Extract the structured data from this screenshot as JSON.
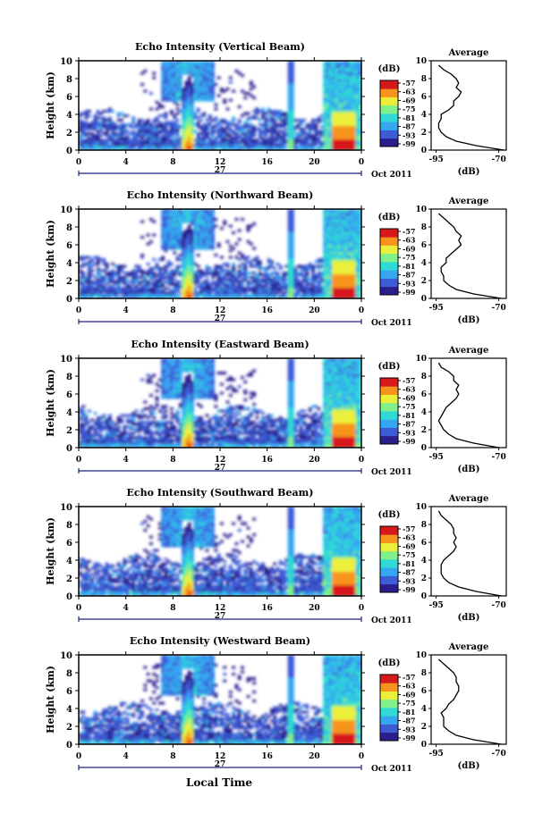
{
  "figure": {
    "xlabel": "Local Time",
    "date_label": "Oct 2011",
    "day_label": "27",
    "colorbar_unit": "(dB)",
    "avg_title": "Average",
    "avg_xlabel": "(dB)"
  },
  "chart_data": [
    {
      "type": "heatmap",
      "title": "Echo Intensity (Vertical Beam)",
      "ylabel": "Height (km)",
      "xlim": [
        0,
        24
      ],
      "x_ticks": [
        "0",
        "4",
        "8",
        "12",
        "16",
        "20",
        "0"
      ],
      "ylim": [
        0,
        10
      ],
      "y_ticks": [
        "0",
        "2",
        "4",
        "6",
        "8",
        "10"
      ],
      "colorbar": {
        "label": "(dB)",
        "range": [
          -99,
          -57
        ],
        "ticks": [
          "-57",
          "-63",
          "-69",
          "-75",
          "-81",
          "-87",
          "-93",
          "-99"
        ]
      },
      "average_profile": {
        "title": "Average",
        "xlabel": "(dB)",
        "x_ticks": [
          "-95",
          "-70"
        ],
        "xlim": [
          -97,
          -67
        ],
        "ylim": [
          0,
          10
        ],
        "height_km": [
          0,
          0.5,
          1,
          1.5,
          2,
          2.5,
          3,
          3.5,
          4,
          4.5,
          5,
          5.5,
          6,
          6.5,
          7,
          7.5,
          8,
          8.5,
          9,
          9.5
        ],
        "db": [
          -68,
          -79,
          -87,
          -91,
          -93,
          -94,
          -94,
          -93,
          -93,
          -90,
          -88,
          -88,
          -86,
          -85,
          -87,
          -86,
          -87,
          -89,
          -92,
          -94
        ]
      }
    },
    {
      "type": "heatmap",
      "title": "Echo Intensity (Northward Beam)",
      "ylabel": "Height (km)",
      "xlim": [
        0,
        24
      ],
      "x_ticks": [
        "0",
        "4",
        "8",
        "12",
        "16",
        "20",
        "0"
      ],
      "ylim": [
        0,
        10
      ],
      "y_ticks": [
        "0",
        "2",
        "4",
        "6",
        "8",
        "10"
      ],
      "colorbar": {
        "label": "(dB)",
        "range": [
          -99,
          -57
        ],
        "ticks": [
          "-57",
          "-63",
          "-69",
          "-75",
          "-81",
          "-87",
          "-93",
          "-99"
        ]
      },
      "average_profile": {
        "title": "Average",
        "xlabel": "(dB)",
        "x_ticks": [
          "-95",
          "-70"
        ],
        "xlim": [
          -97,
          -67
        ],
        "ylim": [
          0,
          10
        ],
        "height_km": [
          0,
          0.5,
          1,
          1.5,
          2,
          2.5,
          3,
          3.5,
          4,
          4.5,
          5,
          5.5,
          6,
          6.5,
          7,
          7.5,
          8,
          8.5,
          9,
          9.5
        ],
        "db": [
          -69,
          -80,
          -87,
          -90,
          -92,
          -92,
          -93,
          -93,
          -91,
          -91,
          -89,
          -87,
          -85,
          -86,
          -85,
          -87,
          -88,
          -90,
          -92,
          -94
        ]
      }
    },
    {
      "type": "heatmap",
      "title": "Echo Intensity (Eastward Beam)",
      "ylabel": "Height (km)",
      "xlim": [
        0,
        24
      ],
      "x_ticks": [
        "0",
        "4",
        "8",
        "12",
        "16",
        "20",
        "0"
      ],
      "ylim": [
        0,
        10
      ],
      "y_ticks": [
        "0",
        "2",
        "4",
        "6",
        "8",
        "10"
      ],
      "colorbar": {
        "label": "(dB)",
        "range": [
          -99,
          -57
        ],
        "ticks": [
          "-57",
          "-63",
          "-69",
          "-75",
          "-81",
          "-87",
          "-93",
          "-99"
        ]
      },
      "average_profile": {
        "title": "Average",
        "xlabel": "(dB)",
        "x_ticks": [
          "-95",
          "-70"
        ],
        "xlim": [
          -97,
          -67
        ],
        "ylim": [
          0,
          10
        ],
        "height_km": [
          0,
          0.5,
          1,
          1.5,
          2,
          2.5,
          3,
          3.5,
          4,
          4.5,
          5,
          5.5,
          6,
          6.5,
          7,
          7.5,
          8,
          8.5,
          9,
          9.5
        ],
        "db": [
          -70,
          -80,
          -87,
          -90,
          -92,
          -93,
          -94,
          -93,
          -92,
          -91,
          -89,
          -87,
          -86,
          -87,
          -86,
          -88,
          -88,
          -90,
          -93,
          -94
        ]
      }
    },
    {
      "type": "heatmap",
      "title": "Echo Intensity (Southward Beam)",
      "ylabel": "Height (km)",
      "xlim": [
        0,
        24
      ],
      "x_ticks": [
        "0",
        "4",
        "8",
        "12",
        "16",
        "20",
        "0"
      ],
      "ylim": [
        0,
        10
      ],
      "y_ticks": [
        "0",
        "2",
        "4",
        "6",
        "8",
        "10"
      ],
      "colorbar": {
        "label": "(dB)",
        "range": [
          -99,
          -57
        ],
        "ticks": [
          "-57",
          "-63",
          "-69",
          "-75",
          "-81",
          "-87",
          "-93",
          "-99"
        ]
      },
      "average_profile": {
        "title": "Average",
        "xlabel": "(dB)",
        "x_ticks": [
          "-95",
          "-70"
        ],
        "xlim": [
          -97,
          -67
        ],
        "ylim": [
          0,
          10
        ],
        "height_km": [
          0,
          0.5,
          1,
          1.5,
          2,
          2.5,
          3,
          3.5,
          4,
          4.5,
          5,
          5.5,
          6,
          6.5,
          7,
          7.5,
          8,
          8.5,
          9,
          9.5
        ],
        "db": [
          -69,
          -79,
          -86,
          -90,
          -92,
          -93,
          -93,
          -93,
          -92,
          -90,
          -88,
          -87,
          -88,
          -87,
          -88,
          -88,
          -89,
          -91,
          -93,
          -94
        ]
      }
    },
    {
      "type": "heatmap",
      "title": "Echo Intensity (Westward Beam)",
      "ylabel": "Height (km)",
      "xlim": [
        0,
        24
      ],
      "x_ticks": [
        "0",
        "4",
        "8",
        "12",
        "16",
        "20",
        "0"
      ],
      "ylim": [
        0,
        10
      ],
      "y_ticks": [
        "0",
        "2",
        "4",
        "6",
        "8",
        "10"
      ],
      "colorbar": {
        "label": "(dB)",
        "range": [
          -99,
          -57
        ],
        "ticks": [
          "-57",
          "-63",
          "-69",
          "-75",
          "-81",
          "-87",
          "-93",
          "-99"
        ]
      },
      "average_profile": {
        "title": "Average",
        "xlabel": "(dB)",
        "x_ticks": [
          "-95",
          "-70"
        ],
        "xlim": [
          -97,
          -67
        ],
        "ylim": [
          0,
          10
        ],
        "height_km": [
          0,
          0.5,
          1,
          1.5,
          2,
          2.5,
          3,
          3.5,
          4,
          4.5,
          5,
          5.5,
          6,
          6.5,
          7,
          7.5,
          8,
          8.5,
          9,
          9.5
        ],
        "db": [
          -69,
          -80,
          -87,
          -90,
          -92,
          -92,
          -92,
          -93,
          -91,
          -90,
          -88,
          -87,
          -86,
          -86,
          -87,
          -87,
          -88,
          -90,
          -92,
          -94
        ]
      }
    }
  ],
  "colors": {
    "colormap": [
      "#2a1e8c",
      "#3e5bd6",
      "#35a6f0",
      "#2fd9d6",
      "#7ff08a",
      "#ecef3a",
      "#f7941d",
      "#d7191c"
    ],
    "background": "#ffffff",
    "axis": "#000000"
  }
}
